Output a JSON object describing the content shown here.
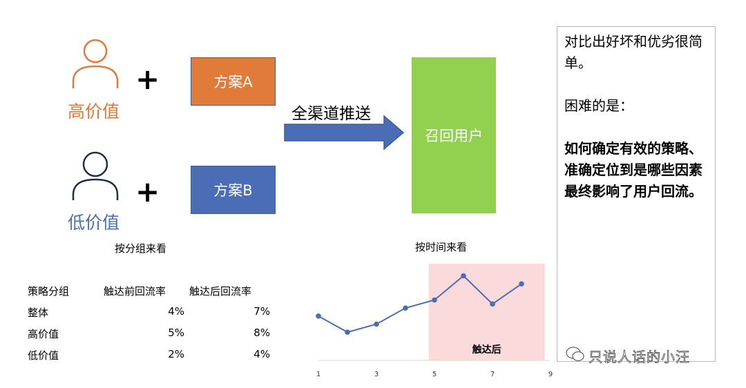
{
  "groups": [
    {
      "label": "高价值",
      "plan": "方案A",
      "plus": "+"
    },
    {
      "label": "低价值",
      "plan": "方案B",
      "plus": "+"
    }
  ],
  "arrow_label": "全渠道推送",
  "target_label": "召回用户",
  "captions": {
    "by_group": "按分组来看",
    "by_time": "按时间来看"
  },
  "table": {
    "headers": [
      "策略分组",
      "触达前回流率",
      "触达后回流率"
    ],
    "rows": [
      [
        "整体",
        "4%",
        "7%"
      ],
      [
        "高价值",
        "5%",
        "8%"
      ],
      [
        "低价值",
        "2%",
        "4%"
      ]
    ]
  },
  "note": {
    "line1": "对比出好坏和优劣很简单。",
    "line2": "困难的是：",
    "line3": "如何确定有效的策略、准确定位到是哪些因素最终影响了用户回流。"
  },
  "watermark": "只说人话的小汪",
  "colors": {
    "orange": "#e07b3a",
    "blue": "#4a6db5",
    "green": "#92d050",
    "highlight": "#fadadb",
    "line": "#4a6db5"
  },
  "chart_data": {
    "type": "line",
    "x": [
      1,
      2,
      3,
      4,
      5,
      6,
      7,
      8
    ],
    "series": [
      {
        "values": [
          5.5,
          3.5,
          4.5,
          6.5,
          7.5,
          10.5,
          7.0,
          9.5
        ]
      }
    ],
    "xticks": [
      "1",
      "3",
      "5",
      "7",
      "9"
    ],
    "xlim": [
      1,
      9
    ],
    "ylim": [
      0,
      12
    ],
    "highlight": {
      "x_from": 4.8,
      "x_to": 8.8,
      "label": "触达后"
    },
    "grid": false,
    "title": "",
    "xlabel": "",
    "ylabel": ""
  }
}
